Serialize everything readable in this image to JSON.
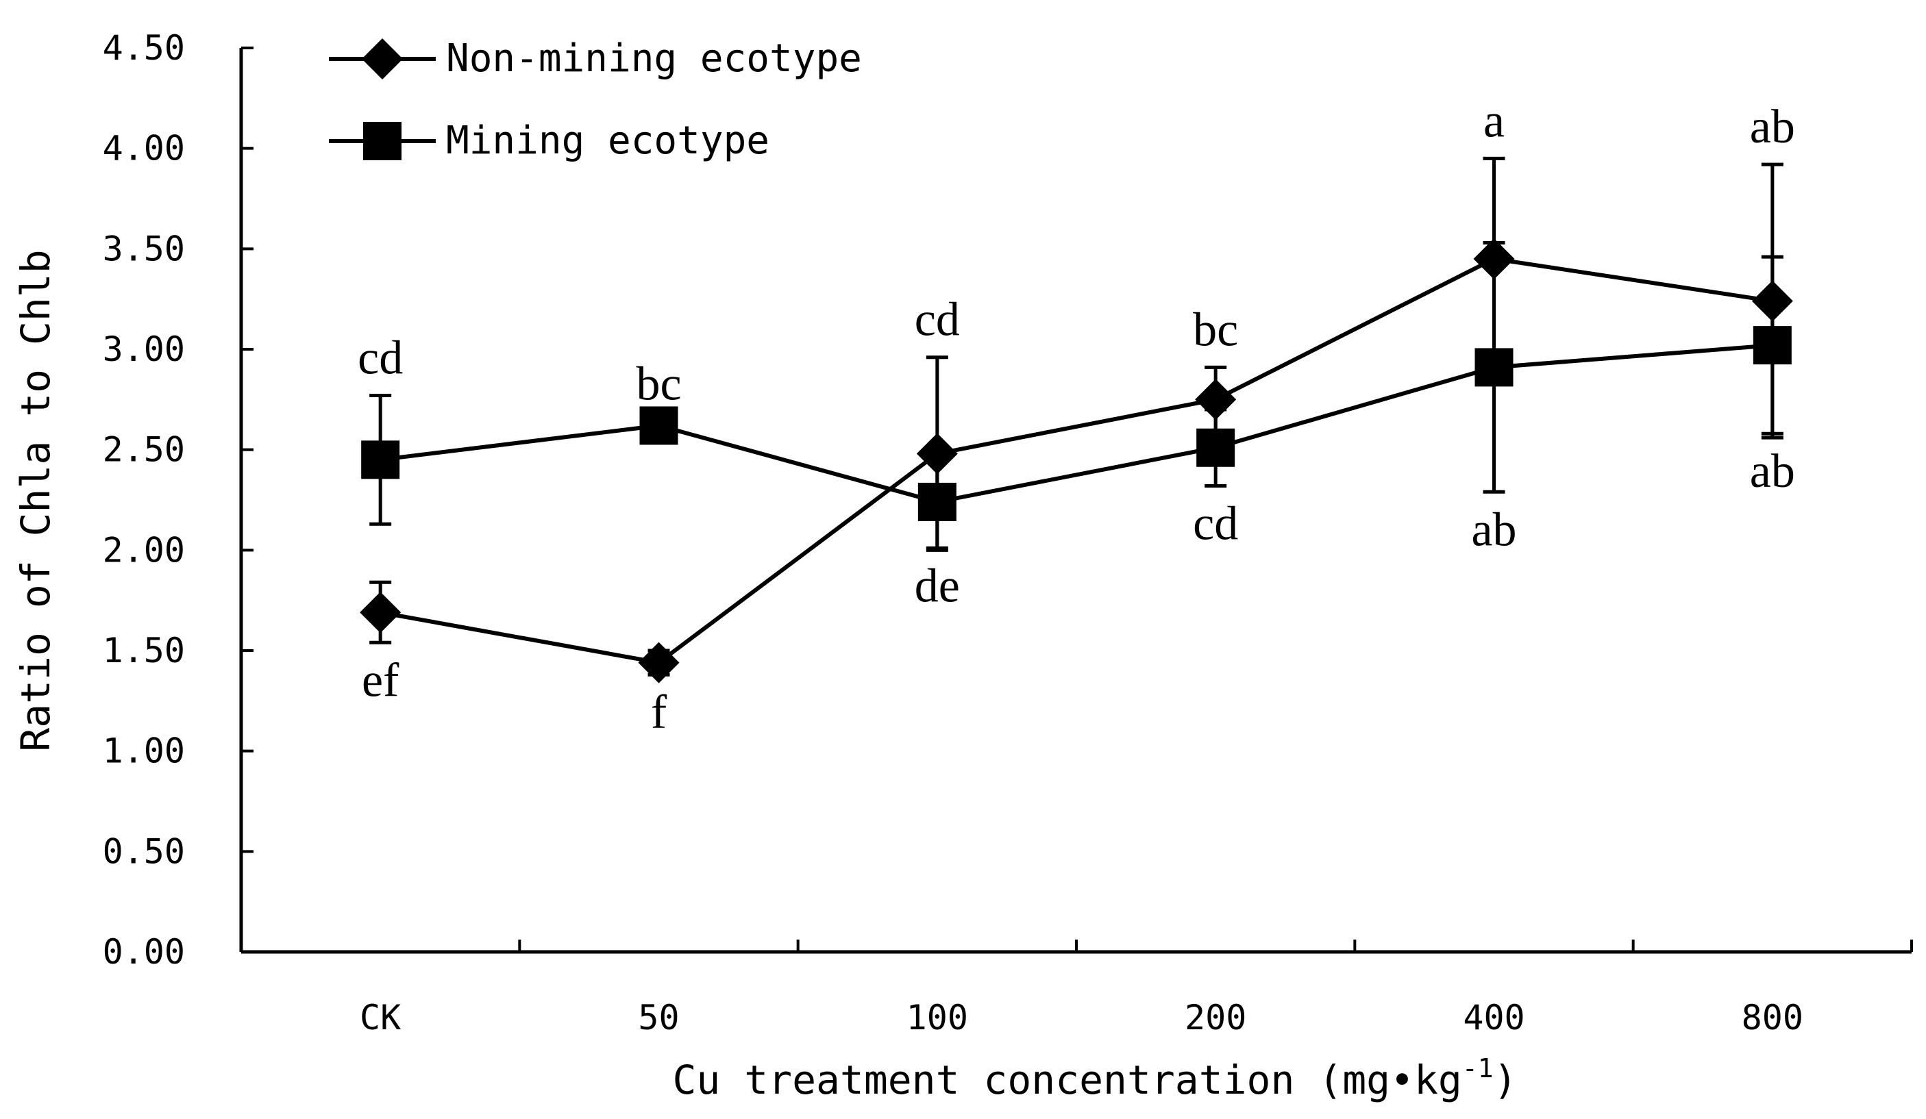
{
  "chart_data": {
    "type": "line",
    "title": "",
    "xlabel": "Cu treatment concentration (mg•kg",
    "xlabel_superscript": "-1",
    "xlabel_close": ")",
    "ylabel": "Ratio of Chla to Chlb",
    "categories": [
      "CK",
      "50",
      "100",
      "200",
      "400",
      "800"
    ],
    "ylim": [
      0,
      4.5
    ],
    "yticks": [
      "0.00",
      "0.50",
      "1.00",
      "1.50",
      "2.00",
      "2.50",
      "3.00",
      "3.50",
      "4.00",
      "4.50"
    ],
    "legend_position": "top-left",
    "series": [
      {
        "name": "Non-mining ecotype",
        "marker": "diamond",
        "values": [
          1.69,
          1.44,
          2.48,
          2.75,
          3.45,
          3.24
        ],
        "error": [
          0.15,
          0.06,
          0.48,
          0.16,
          0.5,
          0.68
        ],
        "labels": [
          "ef",
          "f",
          "cd",
          "bc",
          "a",
          "ab"
        ],
        "label_side": [
          "below",
          "below",
          "above",
          "above",
          "above",
          "above"
        ]
      },
      {
        "name": "Mining ecotype",
        "marker": "square",
        "values": [
          2.45,
          2.62,
          2.24,
          2.51,
          2.91,
          3.02
        ],
        "error": [
          0.32,
          0.02,
          0.23,
          0.19,
          0.62,
          0.44
        ],
        "labels": [
          "cd",
          "bc",
          "de",
          "cd",
          "ab",
          "ab"
        ],
        "label_side": [
          "above",
          "above",
          "below",
          "below",
          "below",
          "below"
        ]
      }
    ]
  }
}
